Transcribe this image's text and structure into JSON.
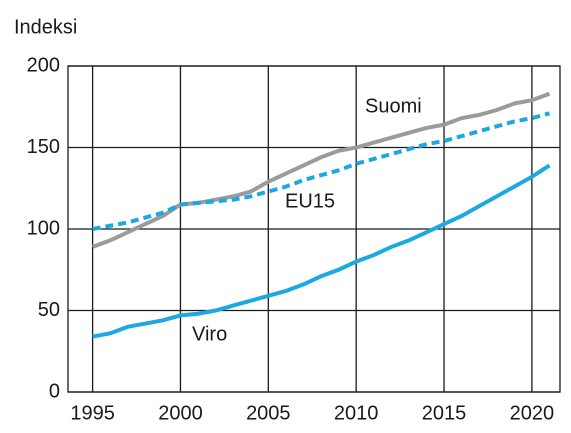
{
  "chart_data": {
    "type": "line",
    "y_label": "Indeksi",
    "x": [
      1995,
      1996,
      1997,
      1998,
      1999,
      2000,
      2001,
      2002,
      2003,
      2004,
      2005,
      2006,
      2007,
      2008,
      2009,
      2010,
      2011,
      2012,
      2013,
      2014,
      2015,
      2016,
      2017,
      2018,
      2019,
      2020,
      2021
    ],
    "series": [
      {
        "name": "Suomi",
        "color": "#9b9b9b",
        "dash": false,
        "values": [
          89,
          93,
          98,
          103,
          108,
          115,
          116,
          118,
          120,
          123,
          129,
          134,
          139,
          144,
          148,
          150,
          153,
          156,
          159,
          162,
          164,
          168,
          170,
          173,
          177,
          179,
          183
        ]
      },
      {
        "name": "EU15",
        "color": "#1ba9e0",
        "dash": true,
        "values": [
          100,
          102,
          104,
          107,
          110,
          115,
          116,
          117,
          118,
          120,
          123,
          126,
          130,
          133,
          136,
          140,
          143,
          146,
          149,
          152,
          154,
          157,
          160,
          163,
          166,
          168,
          171
        ]
      },
      {
        "name": "Viro",
        "color": "#1ba9e0",
        "dash": false,
        "values": [
          34,
          36,
          40,
          42,
          44,
          47,
          48,
          50,
          53,
          56,
          59,
          62,
          66,
          71,
          75,
          80,
          84,
          89,
          93,
          98,
          103,
          108,
          114,
          120,
          126,
          132,
          139
        ]
      }
    ],
    "xlim": [
      1993.6,
      2021.6
    ],
    "xticks": [
      1995,
      2000,
      2005,
      2010,
      2015,
      2020
    ],
    "ylim": [
      0,
      200
    ],
    "yticks": [
      0,
      50,
      100,
      150,
      200
    ],
    "grid": true
  }
}
